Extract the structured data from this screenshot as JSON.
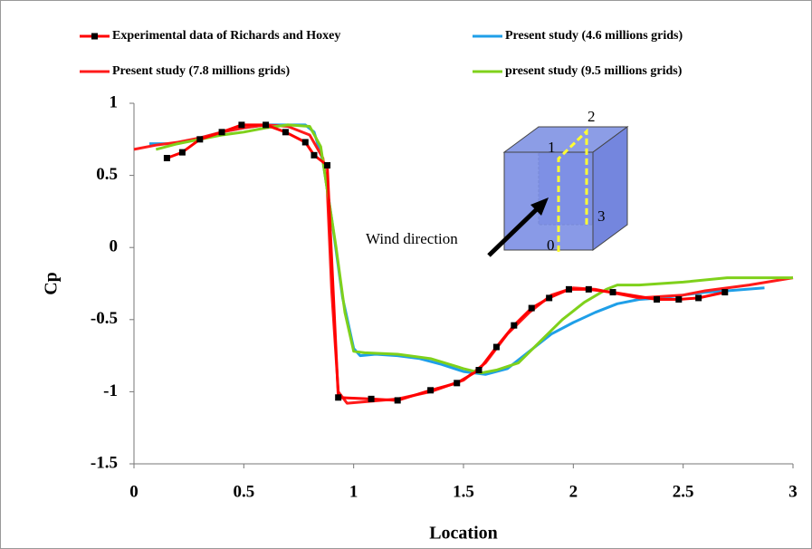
{
  "chart_data": {
    "type": "line",
    "x_label": "Location",
    "y_label": "Cp",
    "xlim": [
      0,
      3
    ],
    "ylim": [
      -1.5,
      1
    ],
    "xticks": [
      0,
      0.5,
      1,
      1.5,
      2,
      2.5,
      3
    ],
    "yticks": [
      1,
      0.5,
      0,
      -0.5,
      -1,
      -1.5
    ],
    "grid": false,
    "annotations": [
      "Wind direction",
      "1",
      "2",
      "3",
      "0"
    ],
    "series": [
      {
        "name": "Experimental data of Richards and Hoxey",
        "color": "#ff0000",
        "marker_color": "#000000",
        "x": [
          0.15,
          0.22,
          0.3,
          0.4,
          0.49,
          0.6,
          0.69,
          0.78,
          0.82,
          0.88,
          0.93,
          1.08,
          1.2,
          1.35,
          1.47,
          1.57,
          1.65,
          1.73,
          1.81,
          1.89,
          1.98,
          2.07,
          2.18,
          2.38,
          2.48,
          2.57,
          2.69
        ],
        "values": [
          0.62,
          0.66,
          0.75,
          0.8,
          0.85,
          0.85,
          0.8,
          0.73,
          0.64,
          0.57,
          -1.04,
          -1.05,
          -1.06,
          -0.99,
          -0.94,
          -0.85,
          -0.69,
          -0.54,
          -0.42,
          -0.35,
          -0.29,
          -0.29,
          -0.31,
          -0.36,
          -0.36,
          -0.35,
          -0.31
        ]
      },
      {
        "name": "Present study (4.6 millions grids)",
        "color": "#1f9fe8",
        "x": [
          0.07,
          0.2,
          0.3,
          0.4,
          0.5,
          0.6,
          0.7,
          0.78,
          0.82,
          0.86,
          0.9,
          0.95,
          1.0,
          1.03,
          1.1,
          1.2,
          1.3,
          1.4,
          1.5,
          1.6,
          1.7,
          1.8,
          1.9,
          2.0,
          2.1,
          2.2,
          2.3,
          2.4,
          2.5,
          2.6,
          2.7,
          2.87
        ],
        "values": [
          0.72,
          0.72,
          0.76,
          0.8,
          0.83,
          0.85,
          0.85,
          0.85,
          0.8,
          0.6,
          0.2,
          -0.35,
          -0.7,
          -0.75,
          -0.74,
          -0.75,
          -0.77,
          -0.81,
          -0.86,
          -0.88,
          -0.84,
          -0.72,
          -0.6,
          -0.52,
          -0.45,
          -0.39,
          -0.36,
          -0.35,
          -0.33,
          -0.31,
          -0.3,
          -0.28
        ]
      },
      {
        "name": "Present study (7.8 millions grids)",
        "color": "#ff1a1a",
        "x": [
          0.0,
          0.1,
          0.2,
          0.3,
          0.4,
          0.5,
          0.6,
          0.7,
          0.8,
          0.86,
          0.88,
          0.9,
          0.93,
          0.97,
          1.05,
          1.2,
          1.35,
          1.5,
          1.6,
          1.7,
          1.8,
          1.9,
          2.0,
          2.1,
          2.2,
          2.3,
          2.4,
          2.5,
          2.6,
          2.8,
          3.0
        ],
        "values": [
          0.68,
          0.71,
          0.73,
          0.76,
          0.8,
          0.83,
          0.85,
          0.84,
          0.78,
          0.62,
          0.4,
          -0.3,
          -1.0,
          -1.08,
          -1.07,
          -1.05,
          -1.0,
          -0.92,
          -0.8,
          -0.6,
          -0.45,
          -0.33,
          -0.28,
          -0.29,
          -0.32,
          -0.35,
          -0.34,
          -0.33,
          -0.3,
          -0.26,
          -0.21
        ]
      },
      {
        "name": "present study (9.5 millions grids)",
        "color": "#7fd11b",
        "x": [
          0.1,
          0.2,
          0.3,
          0.4,
          0.5,
          0.6,
          0.7,
          0.8,
          0.85,
          0.88,
          0.92,
          0.96,
          1.0,
          1.05,
          1.2,
          1.35,
          1.5,
          1.58,
          1.65,
          1.75,
          1.85,
          1.95,
          2.05,
          2.15,
          2.2,
          2.3,
          2.5,
          2.7,
          2.9,
          3.0
        ],
        "values": [
          0.68,
          0.72,
          0.75,
          0.78,
          0.8,
          0.83,
          0.85,
          0.84,
          0.7,
          0.4,
          0.0,
          -0.45,
          -0.72,
          -0.73,
          -0.74,
          -0.77,
          -0.84,
          -0.87,
          -0.85,
          -0.8,
          -0.65,
          -0.5,
          -0.38,
          -0.29,
          -0.26,
          -0.26,
          -0.24,
          -0.21,
          -0.21,
          -0.21
        ]
      }
    ]
  }
}
